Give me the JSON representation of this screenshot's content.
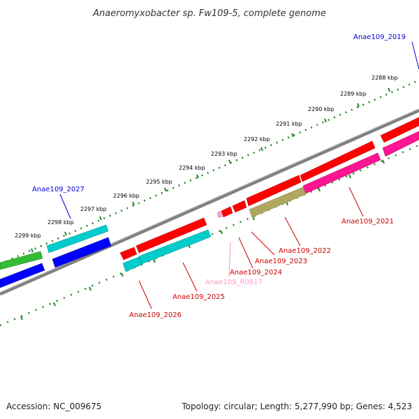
{
  "title": "Anaeromyxobacter sp. Fw109-5, complete genome",
  "accession": "Accession: NC_009675",
  "topology": "Topology: circular; Length: 5,277,990 bp; Genes: 4,523",
  "ticks": [
    "2288 kbp",
    "2289 kbp",
    "2290 kbp",
    "2291 kbp",
    "2292 kbp",
    "2293 kbp",
    "2294 kbp",
    "2295 kbp",
    "2296 kbp",
    "2297 kbp",
    "2298 kbp",
    "2299 kbp"
  ],
  "gene_labels": {
    "g2019": "Anae109_2019",
    "g2027": "Anae109_2027",
    "g2021": "Anae109_2021",
    "g2022": "Anae109_2022",
    "g2023": "Anae109_2023",
    "g2024": "Anae109_2024",
    "rna0017": "Anae109_R0017",
    "g2025": "Anae109_2025",
    "g2026": "Anae109_2026"
  },
  "colors": {
    "red": "#ff0000",
    "magenta": "#ff1493",
    "cyan": "#00cccc",
    "blue": "#0000ff",
    "green": "#33bb33",
    "olive": "#b0a860",
    "pink": "#ff99cc",
    "backbone": "#808080",
    "ruler": "#228822",
    "label_red": "#cc0000",
    "label_blue": "#0000cc",
    "label_pink": "#ff99cc"
  }
}
